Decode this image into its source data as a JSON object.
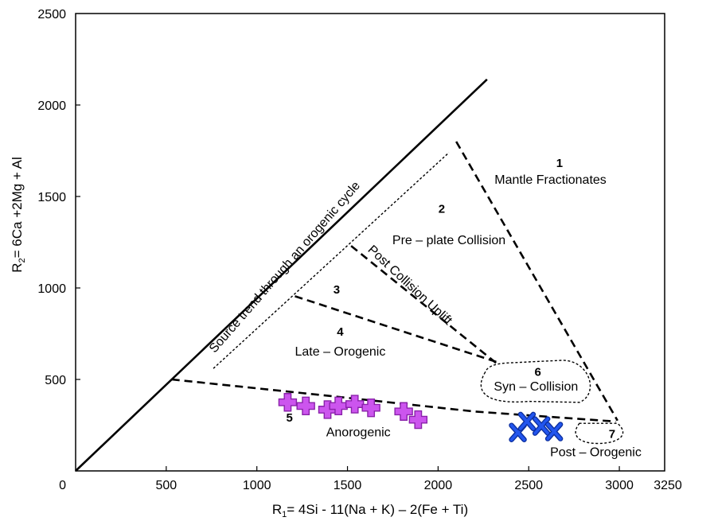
{
  "chart_data": {
    "type": "scatter",
    "x_label_main": "R",
    "x_label_sub": "1",
    "x_label_rest": "= 4Si - 11(Na + K) – 2(Fe + Ti)",
    "y_label_main": "R",
    "y_label_sub": "2",
    "y_label_rest": "= 6Ca +2Mg + Al",
    "xlim": [
      0,
      3250
    ],
    "ylim": [
      0,
      2500
    ],
    "x_ticks": [
      "0",
      "500",
      "1000",
      "1500",
      "2000",
      "2500",
      "3000",
      "3250"
    ],
    "y_ticks": [
      "500",
      "1000",
      "1500",
      "2000",
      "2500"
    ],
    "fields": [
      {
        "number": "1",
        "name": "Mantle Fractionates"
      },
      {
        "number": "2",
        "name": "Pre – plate Collision"
      },
      {
        "number": "3",
        "name": "Post Collision Uplift"
      },
      {
        "number": "4",
        "name": "Late – Orogenic"
      },
      {
        "number": "5",
        "name": "Anorogenic"
      },
      {
        "number": "6",
        "name": "Syn – Collision"
      },
      {
        "number": "7",
        "name": "Post – Orogenic"
      }
    ],
    "trend_label": "Source trend through an orogenic cycle",
    "series": [
      {
        "marker": "plus",
        "color": "#cc55ee",
        "points": [
          {
            "x": 1170,
            "y": 375
          },
          {
            "x": 1270,
            "y": 355
          },
          {
            "x": 1390,
            "y": 335
          },
          {
            "x": 1450,
            "y": 355
          },
          {
            "x": 1540,
            "y": 365
          },
          {
            "x": 1630,
            "y": 345
          },
          {
            "x": 1810,
            "y": 325
          },
          {
            "x": 1890,
            "y": 280
          }
        ]
      },
      {
        "marker": "cross",
        "color": "#2255ee",
        "points": [
          {
            "x": 2440,
            "y": 210
          },
          {
            "x": 2490,
            "y": 270
          },
          {
            "x": 2570,
            "y": 245
          },
          {
            "x": 2640,
            "y": 215
          }
        ]
      }
    ]
  }
}
